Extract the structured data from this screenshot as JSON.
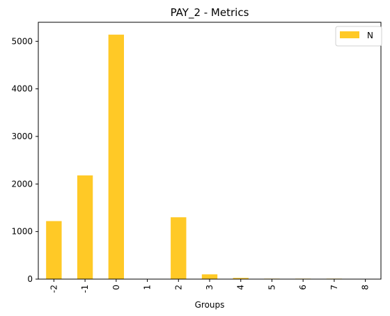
{
  "chart_data": {
    "type": "bar",
    "title": "PAY_2 - Metrics",
    "xlabel": "Groups",
    "ylabel": "",
    "categories": [
      "-2",
      "-1",
      "0",
      "1",
      "2",
      "3",
      "4",
      "5",
      "6",
      "7",
      "8"
    ],
    "series": [
      {
        "name": "N",
        "values": [
          1220,
          2180,
          5140,
          5,
          1300,
          100,
          25,
          10,
          10,
          10,
          0
        ],
        "color": "#ffc926"
      }
    ],
    "ylim": [
      0,
      5400
    ],
    "yticks": [
      0,
      1000,
      2000,
      3000,
      4000,
      5000
    ],
    "grid": false,
    "legend_position": "top-right"
  }
}
